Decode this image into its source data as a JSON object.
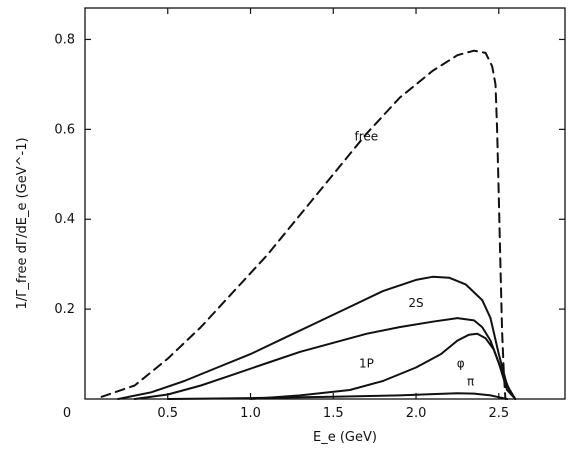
{
  "chart_data": {
    "type": "line",
    "xlabel": "E_e (GeV)",
    "ylabel": "1/Γ_free dΓ/dE_e (GeV^-1)",
    "xlim": [
      0,
      2.9
    ],
    "ylim": [
      0,
      0.87
    ],
    "x_ticks": [
      0.5,
      1.0,
      1.5,
      2.0,
      2.5
    ],
    "x_tick_labels": [
      "0.5",
      "1.0",
      "1.5",
      "2.0",
      "2.5"
    ],
    "origin_label": "0",
    "y_ticks": [
      0.2,
      0.4,
      0.6,
      0.8
    ],
    "y_tick_labels": [
      "0.2",
      "0.4",
      "0.6",
      "0.8"
    ],
    "grid": false,
    "legend": "none",
    "series": [
      {
        "name": "free",
        "style": "dashed",
        "x": [
          0.1,
          0.3,
          0.5,
          0.7,
          0.9,
          1.1,
          1.3,
          1.5,
          1.7,
          1.9,
          2.1,
          2.25,
          2.35,
          2.42,
          2.46,
          2.48,
          2.49,
          2.5,
          2.51,
          2.52,
          2.53,
          2.54
        ],
        "y": [
          0.005,
          0.03,
          0.09,
          0.16,
          0.24,
          0.32,
          0.41,
          0.5,
          0.59,
          0.67,
          0.73,
          0.765,
          0.775,
          0.77,
          0.74,
          0.7,
          0.6,
          0.45,
          0.3,
          0.15,
          0.06,
          0.0
        ]
      },
      {
        "name": "2S",
        "style": "solid",
        "x": [
          0.2,
          0.4,
          0.6,
          0.8,
          1.0,
          1.2,
          1.4,
          1.6,
          1.8,
          2.0,
          2.1,
          2.2,
          2.3,
          2.4,
          2.45,
          2.5,
          2.55,
          2.6
        ],
        "y": [
          0.0,
          0.015,
          0.04,
          0.07,
          0.1,
          0.135,
          0.17,
          0.205,
          0.24,
          0.265,
          0.272,
          0.27,
          0.255,
          0.22,
          0.18,
          0.1,
          0.03,
          0.0
        ]
      },
      {
        "name": "1P",
        "style": "solid",
        "x": [
          0.3,
          0.5,
          0.7,
          0.9,
          1.1,
          1.3,
          1.5,
          1.7,
          1.9,
          2.1,
          2.25,
          2.35,
          2.4,
          2.45,
          2.5,
          2.55,
          2.6
        ],
        "y": [
          0.0,
          0.01,
          0.03,
          0.055,
          0.08,
          0.105,
          0.125,
          0.145,
          0.16,
          0.172,
          0.18,
          0.175,
          0.16,
          0.13,
          0.08,
          0.02,
          0.0
        ]
      },
      {
        "name": "φ",
        "style": "solid",
        "x": [
          1.0,
          1.3,
          1.6,
          1.8,
          2.0,
          2.15,
          2.25,
          2.32,
          2.37,
          2.42,
          2.47,
          2.52,
          2.57,
          2.6
        ],
        "y": [
          0.0,
          0.008,
          0.02,
          0.04,
          0.07,
          0.1,
          0.13,
          0.143,
          0.145,
          0.135,
          0.11,
          0.06,
          0.015,
          0.0
        ]
      },
      {
        "name": "π",
        "style": "solid",
        "x": [
          0.5,
          1.0,
          1.5,
          1.9,
          2.1,
          2.25,
          2.35,
          2.45,
          2.5,
          2.55
        ],
        "y": [
          0.0,
          0.002,
          0.005,
          0.008,
          0.011,
          0.013,
          0.012,
          0.008,
          0.004,
          0.0
        ]
      }
    ],
    "annotations": [
      {
        "text": "free",
        "x": 1.7,
        "y": 0.575
      },
      {
        "text": "2S",
        "x": 2.0,
        "y": 0.205
      },
      {
        "text": "1P",
        "x": 1.7,
        "y": 0.07
      },
      {
        "text": "φ",
        "x": 2.27,
        "y": 0.07
      },
      {
        "text": "π",
        "x": 2.33,
        "y": 0.03
      }
    ]
  },
  "colors": {
    "ink": "#111111",
    "background": "#ffffff"
  }
}
